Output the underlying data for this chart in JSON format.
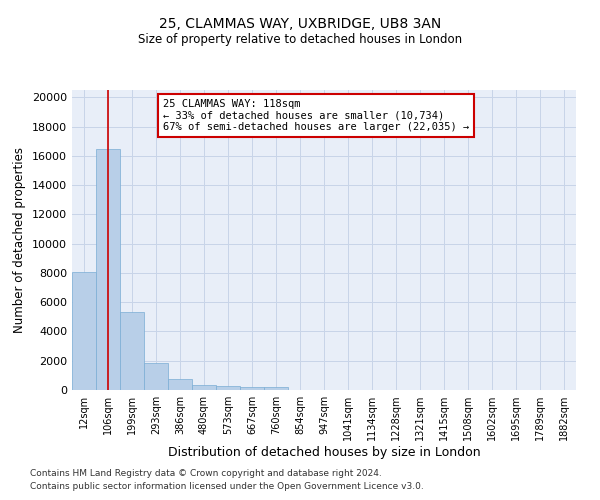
{
  "title_line1": "25, CLAMMAS WAY, UXBRIDGE, UB8 3AN",
  "title_line2": "Size of property relative to detached houses in London",
  "xlabel": "Distribution of detached houses by size in London",
  "ylabel": "Number of detached properties",
  "categories": [
    "12sqm",
    "106sqm",
    "199sqm",
    "293sqm",
    "386sqm",
    "480sqm",
    "573sqm",
    "667sqm",
    "760sqm",
    "854sqm",
    "947sqm",
    "1041sqm",
    "1134sqm",
    "1228sqm",
    "1321sqm",
    "1415sqm",
    "1508sqm",
    "1602sqm",
    "1695sqm",
    "1789sqm",
    "1882sqm"
  ],
  "values": [
    8050,
    16500,
    5300,
    1850,
    780,
    350,
    280,
    215,
    190,
    0,
    0,
    0,
    0,
    0,
    0,
    0,
    0,
    0,
    0,
    0,
    0
  ],
  "bar_color": "#b8cfe8",
  "bar_edge_color": "#7aadd4",
  "vline_x": 1,
  "vline_color": "#cc0000",
  "annotation_text": "25 CLAMMAS WAY: 118sqm\n← 33% of detached houses are smaller (10,734)\n67% of semi-detached houses are larger (22,035) →",
  "annotation_box_color": "#ffffff",
  "annotation_box_edge": "#cc0000",
  "ylim": [
    0,
    20500
  ],
  "yticks": [
    0,
    2000,
    4000,
    6000,
    8000,
    10000,
    12000,
    14000,
    16000,
    18000,
    20000
  ],
  "grid_color": "#c8d4e8",
  "bg_color": "#e8eef8",
  "footer_line1": "Contains HM Land Registry data © Crown copyright and database right 2024.",
  "footer_line2": "Contains public sector information licensed under the Open Government Licence v3.0."
}
